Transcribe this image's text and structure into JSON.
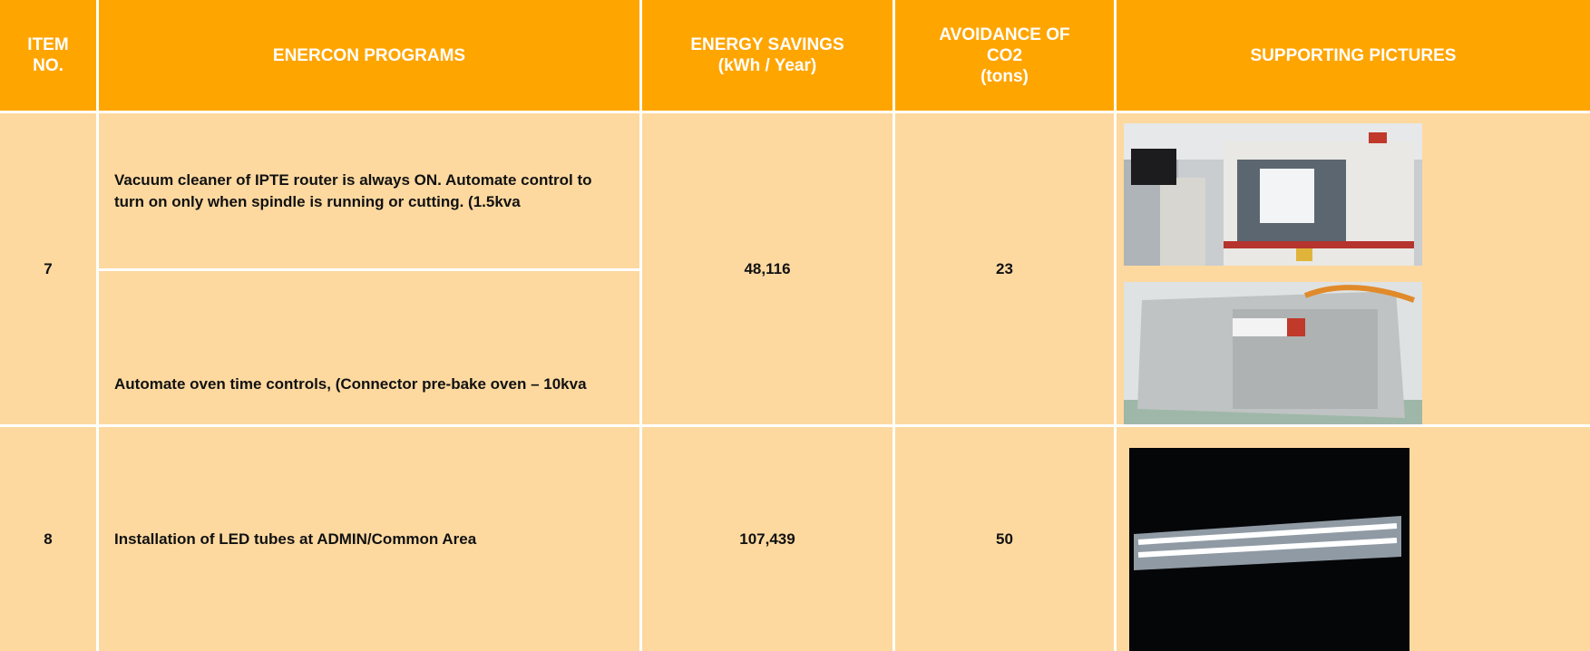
{
  "table": {
    "header": [
      "ITEM\nNO.",
      "ENERCON PROGRAMS",
      "ENERGY SAVINGS\n(kWh / Year)",
      "AVOIDANCE OF\nCO2\n(tons)",
      "SUPPORTING PICTURES"
    ],
    "rows": [
      {
        "item": "7",
        "programs": [
          "Vacuum cleaner of IPTE router is always ON. Automate control to turn on only when spindle is running or cutting. (1.5kva",
          "Automate oven time controls, (Connector pre-bake oven – 10kva"
        ],
        "energy": "48,116",
        "co2": "23"
      },
      {
        "item": "8",
        "programs": [
          "Installation of LED tubes at ADMIN/Common Area"
        ],
        "energy": "107,439",
        "co2": "50"
      }
    ]
  }
}
